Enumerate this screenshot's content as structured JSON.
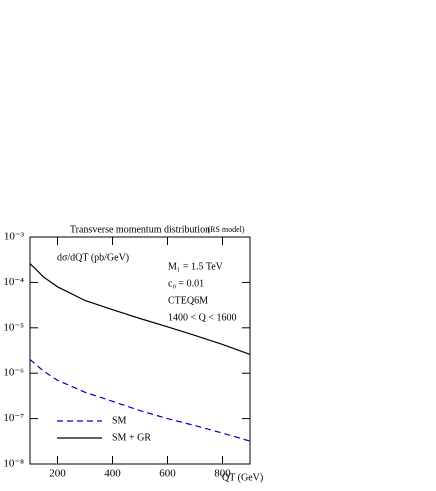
{
  "chart_data": {
    "type": "line",
    "title": "Transverse momentum distribution",
    "subtitle": "(RS model)",
    "y_label": "dσ/dQT (pb/GeV)",
    "x_label": "QT (GeV)",
    "annotations": [
      "M₁ = 1.5 TeV",
      "c₀ = 0.01",
      "CTEQ6M",
      "1400 < Q < 1600"
    ],
    "x": [
      100,
      150,
      200,
      300,
      400,
      500,
      600,
      700,
      800,
      900
    ],
    "series": [
      {
        "name": "SM",
        "color": "#0000cc",
        "dash": true,
        "values": [
          2e-06,
          1.1e-06,
          7e-07,
          3.8e-07,
          2.4e-07,
          1.5e-07,
          1e-07,
          7e-08,
          4.8e-08,
          3.2e-08
        ]
      },
      {
        "name": "SM + GR",
        "color": "#000000",
        "dash": false,
        "values": [
          0.00026,
          0.00013,
          8e-05,
          4e-05,
          2.5e-05,
          1.6e-05,
          1.05e-05,
          6.8e-06,
          4.3e-06,
          2.6e-06
        ]
      }
    ],
    "xlim": [
      100,
      900
    ],
    "xticks": [
      200,
      400,
      600,
      800
    ],
    "ylim": [
      1e-08,
      0.001
    ],
    "yscale": "log",
    "yticks": [
      {
        "value": 1e-08,
        "label": "10⁻⁸"
      },
      {
        "value": 1e-07,
        "label": "10⁻⁷"
      },
      {
        "value": 1e-06,
        "label": "10⁻⁶"
      },
      {
        "value": 1e-05,
        "label": "10⁻⁵"
      },
      {
        "value": 0.0001,
        "label": "10⁻⁴"
      },
      {
        "value": 0.001,
        "label": "10⁻³"
      }
    ],
    "legend": "lower left"
  }
}
